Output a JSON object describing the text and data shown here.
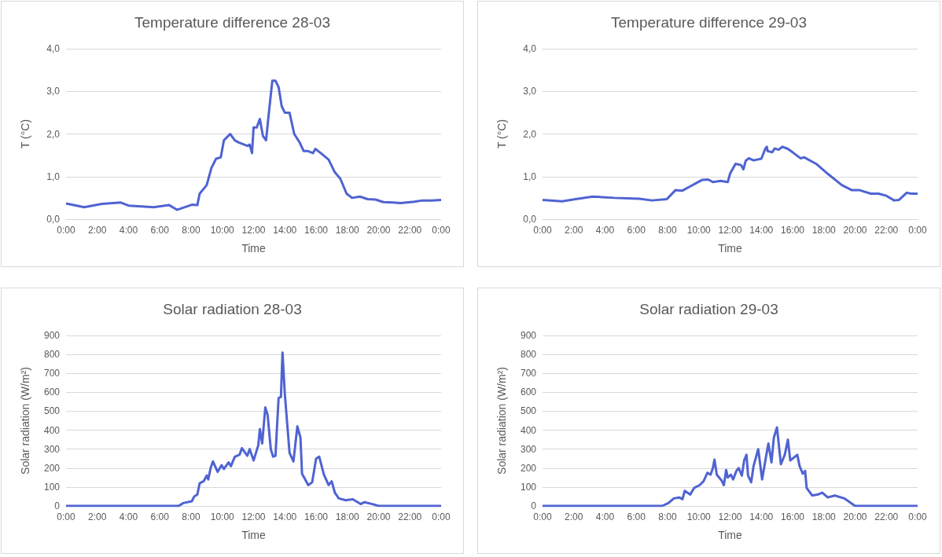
{
  "chart_data": [
    {
      "type": "line",
      "title": "Temperature difference 28-03",
      "xlabel": "Time",
      "ylabel": "T (°C)",
      "grid": "y",
      "marker": "none",
      "line_style": "solid",
      "xlim": [
        0,
        24
      ],
      "xticks": [
        {
          "value": 0,
          "label": "0:00"
        },
        {
          "value": 2,
          "label": "2:00"
        },
        {
          "value": 4,
          "label": "4:00"
        },
        {
          "value": 6,
          "label": "6:00"
        },
        {
          "value": 8,
          "label": "8:00"
        },
        {
          "value": 10,
          "label": "10:00"
        },
        {
          "value": 12,
          "label": "12:00"
        },
        {
          "value": 14,
          "label": "14:00"
        },
        {
          "value": 16,
          "label": "16:00"
        },
        {
          "value": 18,
          "label": "18:00"
        },
        {
          "value": 20,
          "label": "20:00"
        },
        {
          "value": 22,
          "label": "22:00"
        },
        {
          "value": 24,
          "label": "0:00"
        }
      ],
      "ylim": [
        0,
        4
      ],
      "yticks": [
        {
          "value": 0,
          "label": "0,0"
        },
        {
          "value": 1,
          "label": "1,0"
        },
        {
          "value": 2,
          "label": "2,0"
        },
        {
          "value": 3,
          "label": "3,0"
        },
        {
          "value": 4,
          "label": "4,0"
        }
      ],
      "series": [
        {
          "color": "#4f63d2",
          "x": [
            0,
            1.16,
            2.3,
            3.5,
            4.0,
            5.6,
            6.6,
            7.1,
            7.5,
            8.05,
            8.4,
            8.55,
            9.0,
            9.3,
            9.6,
            9.9,
            10.1,
            10.5,
            10.8,
            11.05,
            11.6,
            11.75,
            11.9,
            12.0,
            12.2,
            12.4,
            12.6,
            12.8,
            12.95,
            13.2,
            13.4,
            13.6,
            13.8,
            14.0,
            14.3,
            14.6,
            14.95,
            15.2,
            15.45,
            15.8,
            15.95,
            16.3,
            16.8,
            17.2,
            17.55,
            17.95,
            18.3,
            18.8,
            19.3,
            19.8,
            20.3,
            20.9,
            21.4,
            22.3,
            22.8,
            23.4,
            24
          ],
          "values": [
            0.37,
            0.28,
            0.36,
            0.39,
            0.32,
            0.28,
            0.33,
            0.22,
            0.27,
            0.34,
            0.33,
            0.6,
            0.8,
            1.2,
            1.42,
            1.45,
            1.85,
            2.0,
            1.85,
            1.8,
            1.72,
            1.75,
            1.55,
            2.15,
            2.15,
            2.35,
            1.95,
            1.85,
            2.4,
            3.25,
            3.25,
            3.1,
            2.65,
            2.5,
            2.5,
            2.0,
            1.8,
            1.6,
            1.6,
            1.55,
            1.65,
            1.55,
            1.4,
            1.1,
            0.95,
            0.6,
            0.5,
            0.53,
            0.47,
            0.46,
            0.4,
            0.39,
            0.38,
            0.41,
            0.44,
            0.44,
            0.45
          ]
        }
      ]
    },
    {
      "type": "line",
      "title": "Temperature difference 29-03",
      "xlabel": "Time",
      "ylabel": "T (°C)",
      "grid": "y",
      "marker": "none",
      "line_style": "solid",
      "xlim": [
        0,
        24
      ],
      "xticks": [
        {
          "value": 0,
          "label": "0:00"
        },
        {
          "value": 2,
          "label": "2:00"
        },
        {
          "value": 4,
          "label": "4:00"
        },
        {
          "value": 6,
          "label": "6:00"
        },
        {
          "value": 8,
          "label": "8:00"
        },
        {
          "value": 10,
          "label": "10:00"
        },
        {
          "value": 12,
          "label": "12:00"
        },
        {
          "value": 14,
          "label": "14:00"
        },
        {
          "value": 16,
          "label": "16:00"
        },
        {
          "value": 18,
          "label": "18:00"
        },
        {
          "value": 20,
          "label": "20:00"
        },
        {
          "value": 22,
          "label": "22:00"
        },
        {
          "value": 24,
          "label": "0:00"
        }
      ],
      "ylim": [
        0,
        4
      ],
      "yticks": [
        {
          "value": 0,
          "label": "0,0"
        },
        {
          "value": 1,
          "label": "1,0"
        },
        {
          "value": 2,
          "label": "2,0"
        },
        {
          "value": 3,
          "label": "3,0"
        },
        {
          "value": 4,
          "label": "4,0"
        }
      ],
      "series": [
        {
          "color": "#4f63d2",
          "x": [
            0,
            1.25,
            2.1,
            3.2,
            4.6,
            6.2,
            7.0,
            7.95,
            8.5,
            8.95,
            9.4,
            9.85,
            10.2,
            10.6,
            10.9,
            11.4,
            11.85,
            12.0,
            12.35,
            12.7,
            12.85,
            13.0,
            13.2,
            13.5,
            14.0,
            14.25,
            14.35,
            14.4,
            14.7,
            14.85,
            15.1,
            15.35,
            15.7,
            16.0,
            16.5,
            16.75,
            17.5,
            18.3,
            19.15,
            19.8,
            20.3,
            21.0,
            21.5,
            22.0,
            22.5,
            22.8,
            23.3,
            23.6,
            24
          ],
          "values": [
            0.45,
            0.42,
            0.47,
            0.53,
            0.5,
            0.48,
            0.44,
            0.47,
            0.68,
            0.67,
            0.76,
            0.85,
            0.92,
            0.93,
            0.87,
            0.9,
            0.87,
            1.07,
            1.3,
            1.27,
            1.17,
            1.37,
            1.43,
            1.38,
            1.42,
            1.65,
            1.7,
            1.6,
            1.57,
            1.66,
            1.63,
            1.7,
            1.65,
            1.57,
            1.43,
            1.45,
            1.3,
            1.05,
            0.8,
            0.68,
            0.68,
            0.6,
            0.6,
            0.55,
            0.44,
            0.45,
            0.62,
            0.6,
            0.6
          ]
        }
      ]
    },
    {
      "type": "line",
      "title": "Solar radiation 28-03",
      "xlabel": "Time",
      "ylabel": "Solar radiation (W/m²)",
      "grid": "y",
      "marker": "none",
      "line_style": "solid",
      "xlim": [
        0,
        24
      ],
      "xticks": [
        {
          "value": 0,
          "label": "0:00"
        },
        {
          "value": 2,
          "label": "2:00"
        },
        {
          "value": 4,
          "label": "4:00"
        },
        {
          "value": 6,
          "label": "6:00"
        },
        {
          "value": 8,
          "label": "8:00"
        },
        {
          "value": 10,
          "label": "10:00"
        },
        {
          "value": 12,
          "label": "12:00"
        },
        {
          "value": 14,
          "label": "14:00"
        },
        {
          "value": 16,
          "label": "16:00"
        },
        {
          "value": 18,
          "label": "18:00"
        },
        {
          "value": 20,
          "label": "20:00"
        },
        {
          "value": 22,
          "label": "22:00"
        },
        {
          "value": 24,
          "label": "0:00"
        }
      ],
      "ylim": [
        0,
        900
      ],
      "yticks": [
        0,
        100,
        200,
        300,
        400,
        500,
        600,
        700,
        800,
        900
      ],
      "series": [
        {
          "color": "#4f63d2",
          "x": [
            0,
            7.2,
            7.5,
            8.05,
            8.2,
            8.4,
            8.55,
            8.8,
            9.0,
            9.1,
            9.25,
            9.4,
            9.7,
            9.95,
            10.1,
            10.4,
            10.55,
            10.8,
            11.1,
            11.25,
            11.6,
            11.75,
            12.0,
            12.3,
            12.4,
            12.55,
            12.75,
            12.9,
            13.1,
            13.25,
            13.4,
            13.6,
            13.75,
            13.85,
            14.0,
            14.3,
            14.55,
            14.8,
            15.0,
            15.1,
            15.3,
            15.5,
            15.75,
            16.0,
            16.2,
            16.5,
            16.8,
            17.0,
            17.2,
            17.45,
            17.9,
            18.35,
            18.85,
            19.1,
            19.6,
            20.0,
            24
          ],
          "values": [
            0,
            0,
            15,
            25,
            50,
            60,
            120,
            130,
            160,
            140,
            200,
            235,
            180,
            215,
            195,
            230,
            210,
            260,
            270,
            305,
            265,
            300,
            240,
            320,
            405,
            330,
            520,
            480,
            300,
            260,
            265,
            570,
            575,
            810,
            590,
            280,
            235,
            420,
            360,
            170,
            140,
            110,
            125,
            250,
            260,
            165,
            110,
            130,
            70,
            40,
            30,
            35,
            10,
            20,
            10,
            0,
            0
          ]
        }
      ]
    },
    {
      "type": "line",
      "title": "Solar radiation 29-03",
      "xlabel": "Time",
      "ylabel": "Solar radiation (W/m²)",
      "grid": "y",
      "marker": "none",
      "line_style": "solid",
      "xlim": [
        0,
        24
      ],
      "xticks": [
        {
          "value": 0,
          "label": "0:00"
        },
        {
          "value": 2,
          "label": "2:00"
        },
        {
          "value": 4,
          "label": "4:00"
        },
        {
          "value": 6,
          "label": "6:00"
        },
        {
          "value": 8,
          "label": "8:00"
        },
        {
          "value": 10,
          "label": "10:00"
        },
        {
          "value": 12,
          "label": "12:00"
        },
        {
          "value": 14,
          "label": "14:00"
        },
        {
          "value": 16,
          "label": "16:00"
        },
        {
          "value": 18,
          "label": "18:00"
        },
        {
          "value": 20,
          "label": "20:00"
        },
        {
          "value": 22,
          "label": "22:00"
        },
        {
          "value": 24,
          "label": "0:00"
        }
      ],
      "ylim": [
        0,
        900
      ],
      "yticks": [
        0,
        100,
        200,
        300,
        400,
        500,
        600,
        700,
        800,
        900
      ],
      "series": [
        {
          "color": "#4f63d2",
          "x": [
            0,
            7.65,
            8.05,
            8.4,
            8.75,
            8.95,
            9.1,
            9.45,
            9.7,
            10.05,
            10.3,
            10.55,
            10.75,
            10.9,
            11.0,
            11.15,
            11.45,
            11.6,
            11.75,
            11.85,
            12.05,
            12.2,
            12.4,
            12.55,
            12.75,
            12.9,
            13.05,
            13.15,
            13.35,
            13.5,
            13.8,
            14.05,
            14.3,
            14.45,
            14.65,
            14.8,
            15.0,
            15.25,
            15.5,
            15.7,
            15.85,
            16.3,
            16.45,
            16.65,
            16.8,
            16.9,
            17.25,
            17.6,
            17.9,
            18.25,
            18.7,
            19.3,
            20.0,
            24
          ],
          "values": [
            0,
            0,
            15,
            40,
            45,
            35,
            80,
            60,
            95,
            110,
            130,
            175,
            165,
            200,
            245,
            165,
            135,
            110,
            190,
            150,
            165,
            140,
            185,
            200,
            160,
            240,
            270,
            160,
            125,
            210,
            300,
            140,
            260,
            330,
            230,
            360,
            415,
            220,
            270,
            350,
            240,
            270,
            210,
            170,
            185,
            95,
            55,
            60,
            70,
            45,
            55,
            40,
            0,
            0
          ]
        }
      ]
    }
  ]
}
